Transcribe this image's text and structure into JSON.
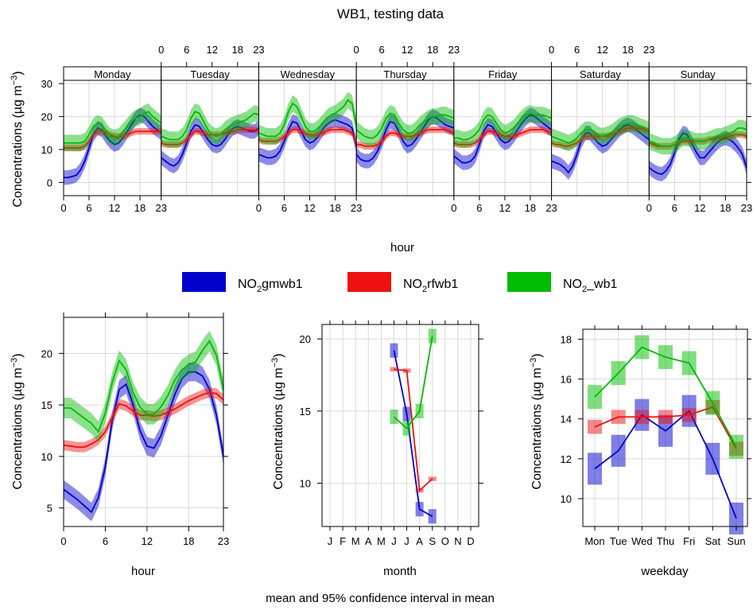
{
  "title": "WB1, testing data",
  "footer": "mean and 95% confidence interval in mean",
  "colors": {
    "NO2gmwb1": "#0000cc",
    "NO2rfwb1": "#ee1111",
    "NO2_wb1": "#00bb00",
    "panel_border": "#000000",
    "grid": "#d9d9d9",
    "strip_bg": "#ffffff"
  },
  "legend": [
    {
      "base": "NO",
      "sub": "2",
      "rest": "gmwb1",
      "color": "#0000cc"
    },
    {
      "base": "NO",
      "sub": "2",
      "rest": "rfwb1",
      "color": "#ee1111"
    },
    {
      "base": "NO",
      "sub": "2",
      "rest": "_wb1",
      "color": "#00bb00"
    }
  ],
  "chart_data": [
    {
      "type": "line",
      "name": "week_hour",
      "xlabel": "hour",
      "ylabel": "Concentrations (µg m⁻³)",
      "ylabel_parts": {
        "main": "Concentrations (",
        "mu": "µ",
        "unit": "g m",
        "sup": "−3",
        "close": ")"
      },
      "ylim": [
        -4,
        31
      ],
      "yticks": [
        0,
        10,
        20,
        30
      ],
      "xticks": [
        0,
        6,
        12,
        18,
        23
      ],
      "xticks_labels": [
        "0",
        "6",
        "12",
        "18",
        "23"
      ],
      "days": [
        "Monday",
        "Tuesday",
        "Wednesday",
        "Thursday",
        "Friday",
        "Saturday",
        "Sunday"
      ],
      "hours": [
        0,
        1,
        2,
        3,
        4,
        5,
        6,
        7,
        8,
        9,
        10,
        11,
        12,
        13,
        14,
        15,
        16,
        17,
        18,
        19,
        20,
        21,
        22,
        23
      ],
      "series": [
        {
          "name": "NO2gmwb1",
          "values": [
            [
              1.5,
              1.5,
              1.8,
              2.2,
              3.8,
              6.5,
              10.5,
              14.5,
              16.5,
              16.0,
              14.0,
              12.5,
              11.5,
              12.0,
              13.5,
              15.5,
              17.5,
              19.5,
              20.5,
              20.0,
              18.5,
              17.0,
              16.0,
              15.0
            ],
            [
              7.5,
              6.5,
              5.5,
              5.0,
              6.0,
              8.5,
              12.0,
              15.5,
              17.5,
              17.0,
              15.0,
              13.0,
              11.5,
              11.0,
              11.5,
              13.0,
              15.0,
              16.5,
              17.0,
              16.5,
              16.0,
              15.5,
              15.5,
              16.5
            ],
            [
              8.5,
              8.0,
              7.5,
              7.5,
              8.0,
              9.5,
              12.5,
              16.0,
              18.5,
              18.0,
              15.5,
              13.0,
              12.0,
              12.5,
              14.0,
              16.0,
              17.5,
              18.5,
              19.0,
              18.5,
              18.0,
              17.5,
              16.5,
              11.0
            ],
            [
              8.5,
              7.0,
              6.5,
              6.5,
              7.5,
              9.5,
              12.5,
              16.0,
              18.5,
              18.0,
              15.5,
              12.5,
              11.0,
              11.5,
              13.0,
              15.0,
              17.0,
              19.0,
              20.0,
              19.5,
              18.5,
              17.5,
              17.0,
              16.5
            ],
            [
              8.0,
              7.0,
              6.0,
              6.0,
              6.5,
              8.0,
              11.5,
              15.5,
              17.5,
              17.0,
              15.0,
              13.0,
              12.0,
              12.5,
              14.0,
              16.0,
              18.0,
              19.5,
              20.5,
              20.0,
              19.0,
              18.0,
              17.0,
              16.0
            ],
            [
              6.5,
              6.0,
              5.5,
              4.5,
              3.0,
              5.0,
              8.5,
              12.5,
              15.0,
              15.0,
              13.5,
              12.0,
              11.0,
              11.5,
              13.0,
              14.5,
              16.0,
              17.0,
              17.5,
              17.0,
              16.0,
              15.0,
              14.0,
              13.0
            ],
            [
              4.5,
              3.5,
              2.8,
              2.5,
              3.5,
              5.5,
              9.0,
              13.0,
              15.0,
              14.5,
              12.0,
              9.5,
              7.5,
              7.5,
              9.0,
              10.5,
              12.0,
              13.0,
              13.5,
              13.0,
              12.0,
              10.5,
              8.5,
              4.5
            ]
          ]
        },
        {
          "name": "NO2rfwb1",
          "values": [
            [
              10.5,
              10.5,
              10.5,
              10.5,
              10.5,
              11.0,
              12.5,
              14.5,
              15.5,
              15.5,
              15.0,
              14.5,
              14.0,
              14.0,
              14.0,
              14.5,
              15.0,
              15.5,
              15.5,
              15.5,
              15.5,
              15.5,
              15.5,
              15.5
            ],
            [
              12.0,
              11.5,
              11.5,
              11.5,
              11.5,
              12.0,
              13.0,
              14.5,
              15.5,
              15.5,
              15.0,
              14.5,
              14.5,
              14.5,
              14.5,
              15.0,
              15.5,
              15.5,
              16.0,
              16.0,
              16.0,
              16.0,
              16.0,
              15.5
            ],
            [
              13.0,
              12.5,
              12.5,
              12.5,
              12.5,
              13.0,
              14.0,
              15.0,
              16.0,
              16.0,
              15.5,
              15.0,
              14.5,
              14.5,
              14.5,
              15.0,
              15.5,
              16.0,
              16.0,
              16.0,
              16.0,
              15.5,
              15.0,
              12.0
            ],
            [
              11.5,
              11.5,
              11.0,
              11.0,
              11.0,
              11.5,
              12.5,
              14.0,
              15.0,
              15.0,
              14.5,
              14.0,
              14.0,
              14.0,
              14.5,
              15.0,
              15.5,
              16.0,
              16.0,
              16.0,
              16.0,
              16.0,
              15.5,
              15.0
            ],
            [
              12.0,
              11.5,
              11.5,
              11.5,
              11.5,
              12.0,
              13.0,
              14.5,
              15.5,
              15.5,
              15.0,
              14.5,
              14.0,
              14.0,
              14.0,
              14.5,
              15.0,
              15.5,
              16.0,
              16.0,
              16.0,
              16.0,
              15.5,
              15.0
            ],
            [
              12.0,
              11.5,
              11.5,
              11.0,
              11.0,
              11.5,
              12.0,
              13.0,
              14.0,
              14.0,
              14.0,
              14.0,
              14.0,
              14.0,
              14.5,
              15.0,
              15.5,
              16.0,
              16.5,
              16.5,
              16.5,
              16.5,
              16.0,
              15.5
            ],
            [
              12.0,
              11.5,
              11.0,
              11.0,
              11.0,
              11.0,
              11.5,
              12.0,
              12.5,
              12.5,
              12.5,
              12.5,
              12.5,
              12.5,
              13.0,
              13.0,
              13.5,
              13.5,
              14.0,
              14.0,
              14.5,
              14.5,
              14.5,
              14.0
            ]
          ]
        },
        {
          "name": "NO2_wb1",
          "values": [
            [
              12.0,
              12.0,
              12.0,
              12.0,
              12.0,
              12.5,
              14.5,
              17.0,
              18.0,
              17.5,
              15.5,
              14.0,
              13.5,
              14.0,
              15.5,
              17.0,
              18.5,
              19.5,
              20.0,
              21.0,
              21.5,
              20.0,
              19.0,
              18.0
            ],
            [
              14.0,
              13.5,
              13.0,
              13.0,
              13.0,
              14.0,
              16.0,
              19.5,
              21.5,
              21.0,
              18.5,
              16.0,
              14.5,
              14.0,
              14.5,
              16.0,
              17.0,
              17.5,
              18.0,
              18.5,
              19.0,
              20.0,
              21.0,
              20.5
            ],
            [
              15.0,
              14.5,
              14.0,
              14.0,
              14.0,
              15.0,
              17.5,
              21.5,
              24.0,
              23.0,
              20.0,
              17.0,
              15.5,
              15.5,
              16.5,
              18.0,
              19.5,
              20.5,
              21.0,
              22.0,
              23.0,
              25.0,
              24.0,
              17.0
            ],
            [
              16.0,
              15.0,
              14.0,
              13.5,
              13.5,
              14.5,
              16.5,
              19.5,
              21.0,
              20.5,
              18.0,
              16.0,
              15.0,
              15.0,
              16.0,
              17.5,
              18.5,
              19.5,
              20.0,
              20.0,
              20.5,
              20.5,
              20.0,
              19.5
            ],
            [
              13.5,
              13.5,
              13.0,
              13.0,
              13.5,
              14.5,
              16.0,
              19.0,
              20.5,
              20.0,
              18.0,
              16.0,
              15.0,
              15.5,
              16.5,
              18.0,
              19.5,
              20.5,
              21.0,
              20.5,
              20.5,
              20.5,
              20.0,
              19.5
            ],
            [
              14.0,
              13.5,
              13.0,
              12.5,
              12.0,
              12.5,
              13.5,
              15.0,
              16.0,
              16.0,
              15.5,
              14.5,
              14.0,
              14.5,
              15.0,
              16.0,
              17.0,
              17.5,
              18.0,
              18.0,
              17.5,
              17.0,
              16.5,
              16.0
            ],
            [
              12.5,
              12.0,
              11.5,
              11.0,
              11.0,
              11.0,
              11.5,
              12.5,
              13.5,
              13.5,
              13.0,
              12.5,
              12.5,
              12.5,
              13.0,
              13.5,
              14.0,
              14.0,
              14.5,
              15.0,
              15.5,
              16.5,
              16.5,
              16.0
            ]
          ]
        }
      ],
      "ci_halfwidth": {
        "NO2gmwb1": 2.2,
        "NO2rfwb1": 1.0,
        "NO2_wb1": 2.5
      }
    },
    {
      "type": "line",
      "name": "hour",
      "xlabel": "hour",
      "ylabel": "Concentrations (µg m⁻³)",
      "ylim": [
        3.2,
        23.5
      ],
      "yticks": [
        5,
        10,
        15,
        20
      ],
      "xticks": [
        0,
        6,
        12,
        18,
        23
      ],
      "xticks_labels": [
        "0",
        "6",
        "12",
        "18",
        "23"
      ],
      "x": [
        0,
        1,
        2,
        3,
        4,
        5,
        6,
        7,
        8,
        9,
        10,
        11,
        12,
        13,
        14,
        15,
        16,
        17,
        18,
        19,
        20,
        21,
        22,
        23
      ],
      "series": [
        {
          "name": "NO2gmwb1",
          "values": [
            6.8,
            6.3,
            5.8,
            5.2,
            4.6,
            6.0,
            9.0,
            13.5,
            16.5,
            17.0,
            15.0,
            12.5,
            11.0,
            10.8,
            12.0,
            14.0,
            16.0,
            17.5,
            18.2,
            18.2,
            17.8,
            16.5,
            14.0,
            10.0
          ],
          "ci": 0.9
        },
        {
          "name": "NO2rfwb1",
          "values": [
            11.1,
            11.0,
            10.9,
            10.9,
            11.2,
            11.6,
            12.4,
            13.8,
            15.1,
            14.9,
            14.4,
            14.0,
            14.0,
            13.9,
            14.0,
            14.3,
            14.6,
            15.0,
            15.4,
            15.7,
            16.0,
            16.2,
            16.1,
            15.5
          ],
          "ci": 0.5
        },
        {
          "name": "NO2_wb1",
          "values": [
            14.7,
            14.7,
            14.2,
            13.7,
            13.2,
            12.4,
            14.2,
            17.2,
            19.3,
            18.4,
            16.2,
            14.8,
            14.1,
            14.1,
            14.8,
            15.9,
            17.4,
            18.4,
            18.9,
            19.2,
            20.3,
            21.2,
            19.8,
            16.5
          ],
          "ci": 1.0
        }
      ]
    },
    {
      "type": "line",
      "name": "month",
      "xlabel": "month",
      "ylabel": "Concentrations (µg m⁻³)",
      "ylim": [
        7.0,
        21.0
      ],
      "yticks": [
        10,
        15,
        20
      ],
      "categories": [
        "J",
        "F",
        "M",
        "A",
        "M",
        "J",
        "J",
        "A",
        "S",
        "O",
        "N",
        "D"
      ],
      "series": [
        {
          "name": "NO2gmwb1",
          "values": [
            null,
            null,
            null,
            null,
            null,
            19.2,
            14.8,
            8.2,
            7.7,
            null,
            null,
            null
          ],
          "ci": 0.5
        },
        {
          "name": "NO2rfwb1",
          "values": [
            null,
            null,
            null,
            null,
            null,
            17.9,
            17.8,
            9.5,
            10.3,
            null,
            null,
            null
          ],
          "ci": 0.15
        },
        {
          "name": "NO2_wb1",
          "values": [
            null,
            null,
            null,
            null,
            null,
            14.6,
            13.8,
            15.0,
            20.2,
            null,
            null,
            null
          ],
          "ci": 0.5
        }
      ]
    },
    {
      "type": "line",
      "name": "weekday",
      "xlabel": "weekday",
      "ylabel": "Concentrations (µg m⁻³)",
      "ylim": [
        8.6,
        18.5
      ],
      "yticks": [
        10,
        12,
        14,
        16,
        18
      ],
      "categories": [
        "Mon",
        "Tue",
        "Wed",
        "Thu",
        "Fri",
        "Sat",
        "Sun"
      ],
      "series": [
        {
          "name": "NO2gmwb1",
          "values": [
            11.5,
            12.4,
            14.2,
            13.4,
            14.4,
            12.0,
            9.0
          ],
          "ci": 0.8
        },
        {
          "name": "NO2rfwb1",
          "values": [
            13.6,
            14.1,
            14.1,
            14.1,
            14.2,
            14.6,
            12.5
          ],
          "ci": 0.35
        },
        {
          "name": "NO2_wb1",
          "values": [
            15.1,
            16.3,
            17.6,
            17.1,
            16.8,
            14.8,
            12.6
          ],
          "ci": 0.6
        }
      ]
    }
  ]
}
